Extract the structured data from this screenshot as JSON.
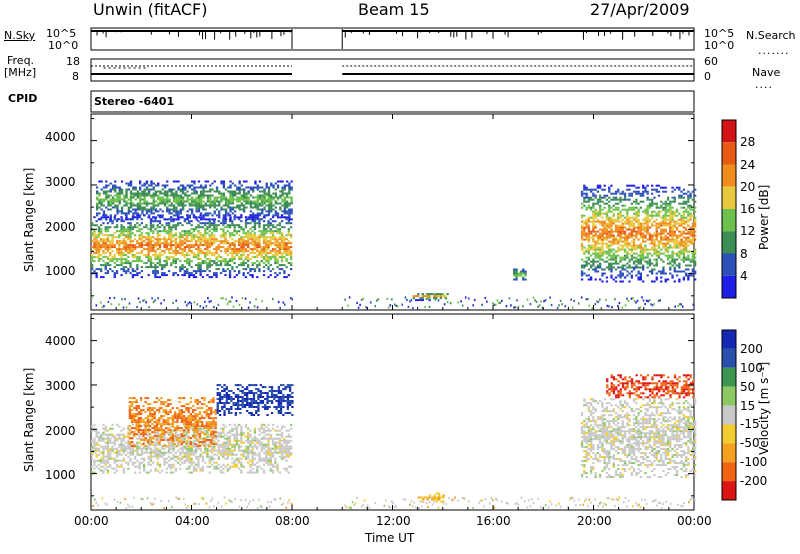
{
  "header": {
    "radar": "Unwin (fitACF)",
    "beam": "Beam 15",
    "date": "27/Apr/2009"
  },
  "params": {
    "nsky_label": "N.Sky",
    "nsky_ticks": [
      "10^5",
      "10^0"
    ],
    "nsearch_label": "N.Search",
    "freq_label_1": "Freq.",
    "freq_label_2": "[MHz]",
    "freq_ticks": [
      "18",
      "8"
    ],
    "nave_label": "Nave",
    "nave_ticks": [
      "60",
      "0"
    ],
    "cpid_label": "CPID",
    "cpid_value": "Stereo -6401"
  },
  "colors": {
    "power": [
      "#1e1ee6",
      "#2b50b8",
      "#3c8c55",
      "#6bc14b",
      "#e8c83c",
      "#f08c1e",
      "#e85a14",
      "#d21414"
    ],
    "velocity": [
      "#dc1414",
      "#f06414",
      "#f5a01e",
      "#f2cc32",
      "#c8c8c8",
      "#8cc864",
      "#3c9650",
      "#2850aa",
      "#1428b4"
    ],
    "background": "#ffffff",
    "ground_scatter": "#c8c8c8"
  },
  "chart_data": [
    {
      "type": "heatmap",
      "panel": "power",
      "xlabel": "",
      "ylabel": "Slant Range [km]",
      "xlim": [
        "00:00",
        "24:00"
      ],
      "ylim": [
        180,
        4600
      ],
      "yticks": [
        "1000",
        "2000",
        "3000",
        "4000"
      ],
      "colorbar_label": "Power [dB]",
      "colorbar_ticks": [
        "4",
        "8",
        "12",
        "16",
        "20",
        "24",
        "28"
      ],
      "data_gap_hours": [
        8.0,
        10.0
      ],
      "scatter_regions": [
        {
          "t0": 0.0,
          "t1": 8.0,
          "r0": 900,
          "r1": 2300,
          "peak_db": 28
        },
        {
          "t0": 0.2,
          "t1": 8.0,
          "r0": 2200,
          "r1": 3100,
          "peak_db": 16
        },
        {
          "t0": 12.8,
          "t1": 14.2,
          "r0": 380,
          "r1": 560,
          "peak_db": 24
        },
        {
          "t0": 16.8,
          "t1": 17.3,
          "r0": 800,
          "r1": 1100,
          "peak_db": 16
        },
        {
          "t0": 19.5,
          "t1": 24.0,
          "r0": 800,
          "r1": 3000,
          "peak_db": 28
        }
      ]
    },
    {
      "type": "heatmap",
      "panel": "velocity",
      "xlabel": "Time UT",
      "ylabel": "Slant Range [km]",
      "xlim": [
        "00:00",
        "24:00"
      ],
      "ylim": [
        180,
        4600
      ],
      "xticks": [
        "00:00",
        "04:00",
        "08:00",
        "12:00",
        "16:00",
        "20:00",
        "00:00"
      ],
      "yticks": [
        "1000",
        "2000",
        "3000",
        "4000"
      ],
      "colorbar_label": "Velocity [m s^-1]",
      "colorbar_ticks": [
        "200",
        "100",
        "50",
        "15",
        "-15",
        "-50",
        "-100",
        "-200"
      ],
      "data_gap_hours": [
        8.0,
        10.0
      ],
      "scatter_regions": [
        {
          "t0": 0.0,
          "t1": 8.0,
          "r0": 1000,
          "r1": 2100,
          "vel": 0
        },
        {
          "t0": 1.5,
          "t1": 5.0,
          "r0": 1600,
          "r1": 2700,
          "vel": -100
        },
        {
          "t0": 5.0,
          "t1": 8.0,
          "r0": 2300,
          "r1": 3000,
          "vel": 200
        },
        {
          "t0": 13.0,
          "t1": 14.0,
          "r0": 350,
          "r1": 550,
          "vel": -50
        },
        {
          "t0": 19.5,
          "t1": 24.0,
          "r0": 900,
          "r1": 2700,
          "vel": 0
        },
        {
          "t0": 20.5,
          "t1": 24.0,
          "r0": 2700,
          "r1": 3200,
          "vel": -200
        }
      ]
    }
  ]
}
